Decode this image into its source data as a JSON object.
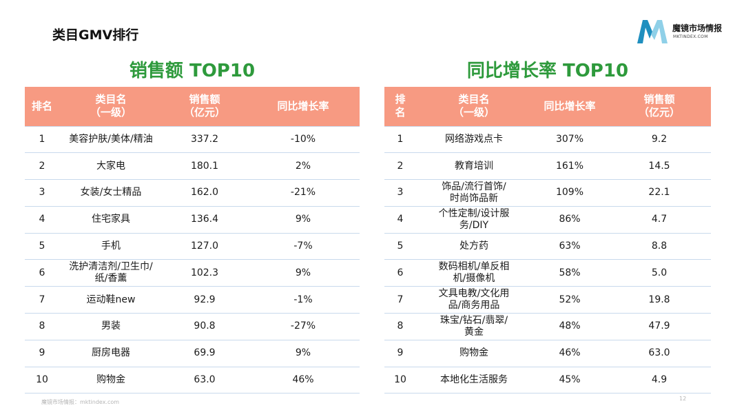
{
  "page": {
    "title": "类目GMV排行",
    "footer_source": "魔镜市场情报：mktindex.com",
    "page_number": "12"
  },
  "logo": {
    "name": "魔镜市场情报",
    "url_text": "MKTINDEX.COM",
    "colors": {
      "dark": "#1f8fbf",
      "light": "#8fd0e8"
    }
  },
  "colors": {
    "title_green": "#2e9a3c",
    "header_bg": "#f79a82",
    "row_line": "#c8d9ec"
  },
  "left_table": {
    "title": "销售额 TOP10",
    "headers": {
      "rank": "排名",
      "category": "类目名\n（一级）",
      "sales": "销售额\n（亿元）",
      "growth": "同比增长率"
    },
    "rows": [
      {
        "rank": "1",
        "category": "美容护肤/美体/精油",
        "sales": "337.2",
        "growth": "-10%"
      },
      {
        "rank": "2",
        "category": "大家电",
        "sales": "180.1",
        "growth": "2%"
      },
      {
        "rank": "3",
        "category": "女装/女士精品",
        "sales": "162.0",
        "growth": "-21%"
      },
      {
        "rank": "4",
        "category": "住宅家具",
        "sales": "136.4",
        "growth": "9%"
      },
      {
        "rank": "5",
        "category": "手机",
        "sales": "127.0",
        "growth": "-7%"
      },
      {
        "rank": "6",
        "category": "洗护清洁剂/卫生巾/\n纸/香薰",
        "sales": "102.3",
        "growth": "9%"
      },
      {
        "rank": "7",
        "category": "运动鞋new",
        "sales": "92.9",
        "growth": "-1%"
      },
      {
        "rank": "8",
        "category": "男装",
        "sales": "90.8",
        "growth": "-27%"
      },
      {
        "rank": "9",
        "category": "厨房电器",
        "sales": "69.9",
        "growth": "9%"
      },
      {
        "rank": "10",
        "category": "购物金",
        "sales": "63.0",
        "growth": "46%"
      }
    ]
  },
  "right_table": {
    "title": "同比增长率 TOP10",
    "headers": {
      "rank": "排\n名",
      "category": "类目名\n（一级）",
      "growth": "同比增长率",
      "sales": "销售额\n（亿元）"
    },
    "rows": [
      {
        "rank": "1",
        "category": "网络游戏点卡",
        "growth": "307%",
        "sales": "9.2"
      },
      {
        "rank": "2",
        "category": "教育培训",
        "growth": "161%",
        "sales": "14.5"
      },
      {
        "rank": "3",
        "category": "饰品/流行首饰/\n时尚饰品新",
        "growth": "109%",
        "sales": "22.1"
      },
      {
        "rank": "4",
        "category": "个性定制/设计服\n务/DIY",
        "growth": "86%",
        "sales": "4.7"
      },
      {
        "rank": "5",
        "category": "处方药",
        "growth": "63%",
        "sales": "8.8"
      },
      {
        "rank": "6",
        "category": "数码相机/单反相\n机/摄像机",
        "growth": "58%",
        "sales": "5.0"
      },
      {
        "rank": "7",
        "category": "文具电教/文化用\n品/商务用品",
        "growth": "52%",
        "sales": "19.8"
      },
      {
        "rank": "8",
        "category": "珠宝/钻石/翡翠/\n黄金",
        "growth": "48%",
        "sales": "47.9"
      },
      {
        "rank": "9",
        "category": "购物金",
        "growth": "46%",
        "sales": "63.0"
      },
      {
        "rank": "10",
        "category": "本地化生活服务",
        "growth": "45%",
        "sales": "4.9"
      }
    ]
  }
}
